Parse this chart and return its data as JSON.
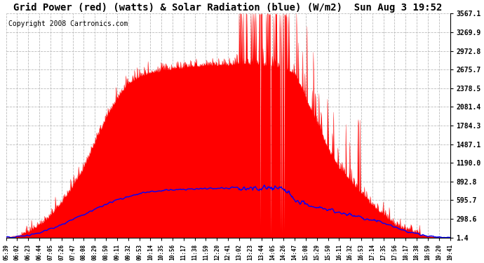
{
  "title": "Grid Power (red) (watts) & Solar Radiation (blue) (W/m2)  Sun Aug 3 19:52",
  "copyright": "Copyright 2008 Cartronics.com",
  "background_color": "#ffffff",
  "plot_bg_color": "#ffffff",
  "grid_color": "#bbbbbb",
  "ytick_labels": [
    "1.4",
    "298.6",
    "595.7",
    "892.8",
    "1190.0",
    "1487.1",
    "1784.3",
    "2081.4",
    "2378.5",
    "2675.7",
    "2972.8",
    "3269.9",
    "3567.1"
  ],
  "ytick_values": [
    1.4,
    298.6,
    595.7,
    892.8,
    1190.0,
    1487.1,
    1784.3,
    2081.4,
    2378.5,
    2675.7,
    2972.8,
    3269.9,
    3567.1
  ],
  "ymin": 1.4,
  "ymax": 3567.1,
  "xtick_labels": [
    "05:39",
    "06:02",
    "06:23",
    "06:44",
    "07:05",
    "07:26",
    "07:47",
    "08:08",
    "08:29",
    "08:50",
    "09:11",
    "09:32",
    "09:53",
    "10:14",
    "10:35",
    "10:56",
    "11:17",
    "11:38",
    "11:59",
    "12:20",
    "12:41",
    "13:02",
    "13:23",
    "13:44",
    "14:05",
    "14:26",
    "14:47",
    "15:08",
    "15:29",
    "15:50",
    "16:11",
    "16:32",
    "16:53",
    "17:14",
    "17:35",
    "17:56",
    "18:17",
    "18:38",
    "18:59",
    "19:20",
    "19:41"
  ],
  "red_color": "#ff0000",
  "blue_color": "#0000ff",
  "title_fontsize": 10,
  "copyright_fontsize": 7,
  "red_base_envelope": [
    5,
    30,
    80,
    180,
    340,
    550,
    800,
    1100,
    1500,
    1900,
    2200,
    2450,
    2550,
    2620,
    2650,
    2680,
    2700,
    2720,
    2730,
    2740,
    2745,
    2750,
    2760,
    2740,
    2720,
    2700,
    2600,
    2200,
    1800,
    1400,
    1100,
    900,
    700,
    500,
    350,
    200,
    120,
    60,
    25,
    8,
    2
  ],
  "blue_base_envelope": [
    5,
    15,
    40,
    80,
    140,
    210,
    290,
    370,
    450,
    530,
    600,
    650,
    700,
    730,
    750,
    760,
    770,
    775,
    780,
    785,
    790,
    800,
    805,
    800,
    795,
    780,
    600,
    520,
    480,
    440,
    400,
    360,
    320,
    280,
    230,
    170,
    110,
    60,
    25,
    10,
    3
  ]
}
